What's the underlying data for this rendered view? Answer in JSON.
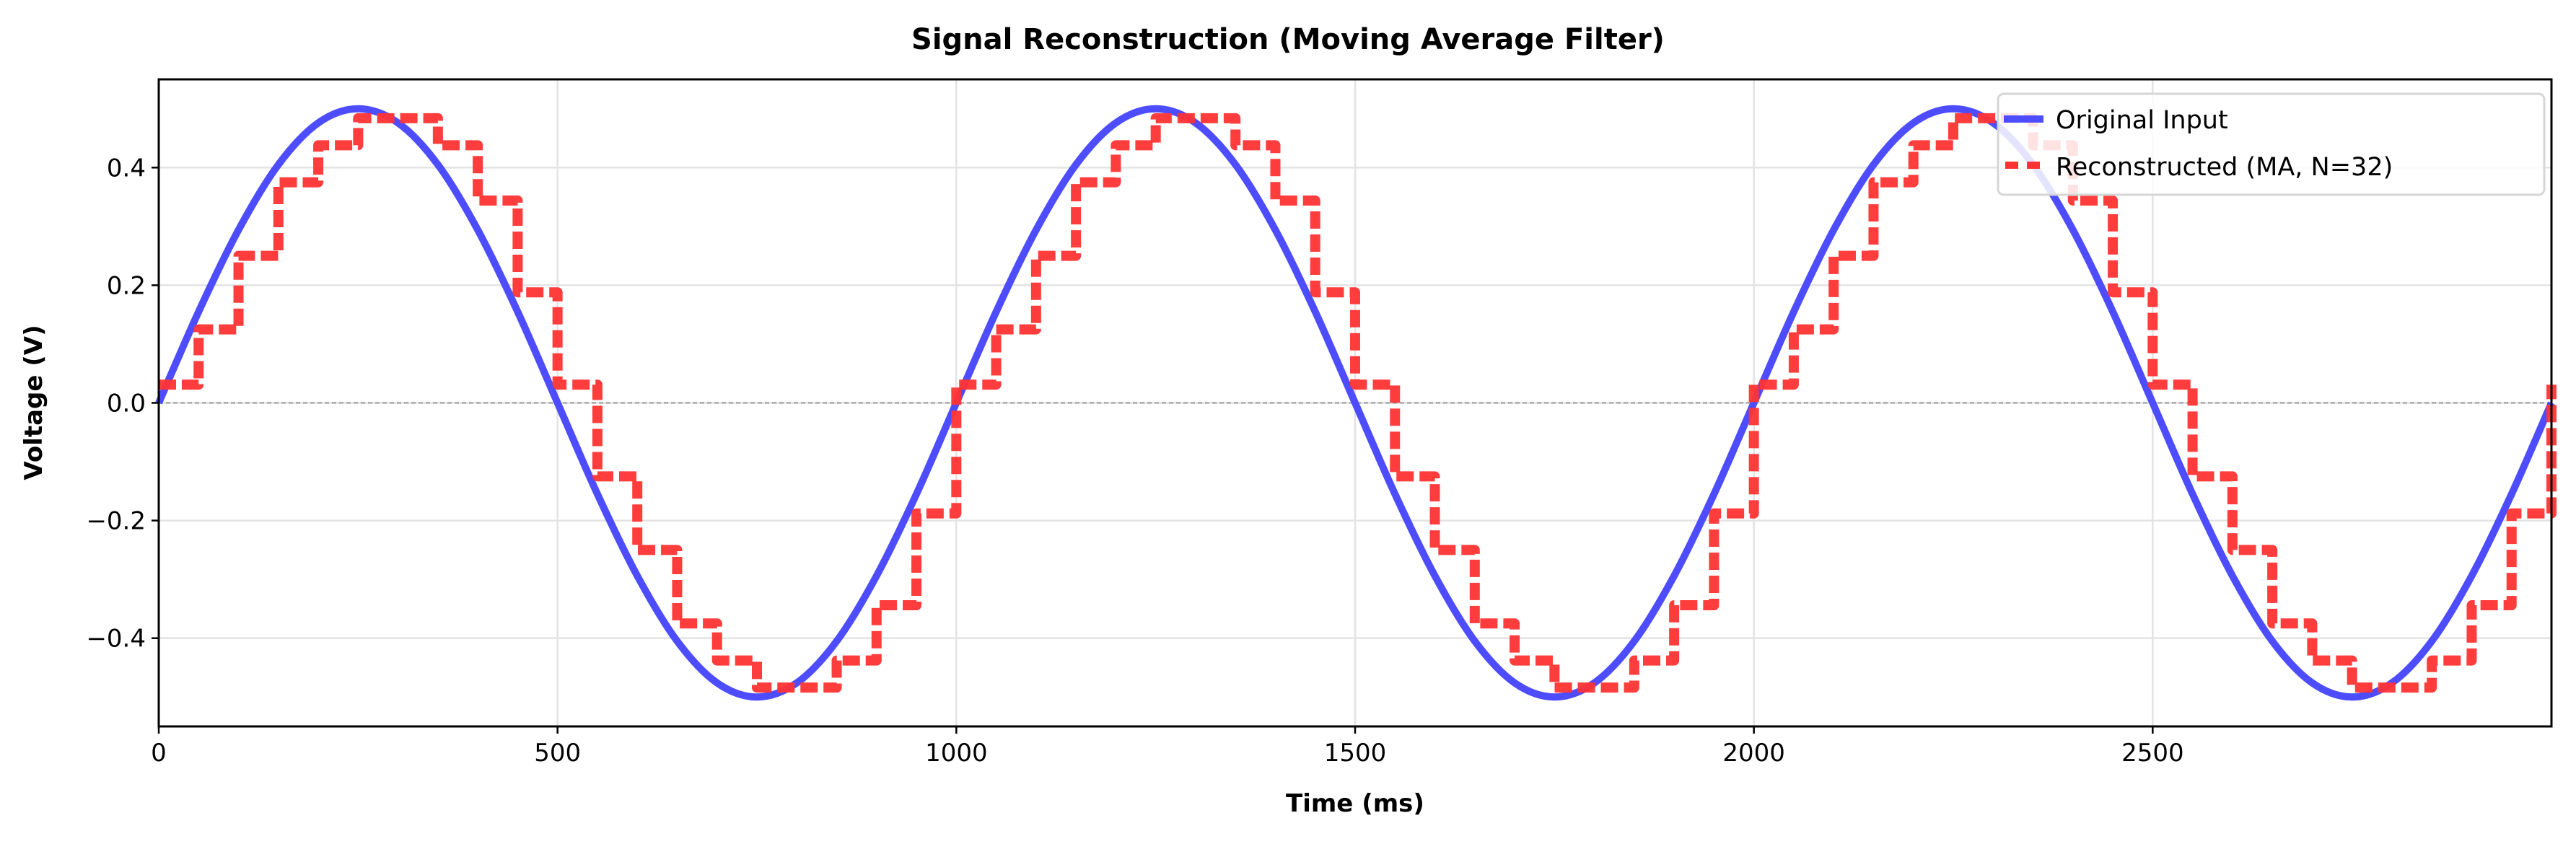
{
  "chart_data": {
    "type": "line",
    "title": "Signal Reconstruction (Moving Average Filter)",
    "xlabel": "Time (ms)",
    "ylabel": "Voltage (V)",
    "xlim": [
      0,
      3000
    ],
    "ylim": [
      -0.55,
      0.55
    ],
    "xticks": [
      "0",
      "500",
      "1000",
      "1500",
      "2000",
      "2500"
    ],
    "xtick_values": [
      0,
      500,
      1000,
      1500,
      2000,
      2500
    ],
    "yticks": [
      "−0.4",
      "−0.2",
      "0.0",
      "0.2",
      "0.4"
    ],
    "ytick_values": [
      -0.4,
      -0.2,
      0.0,
      0.2,
      0.4
    ],
    "grid": true,
    "zero_line": {
      "y": 0,
      "style": "dashed",
      "color": "#999999"
    },
    "legend_position": "top-right",
    "x_step_ms": 50,
    "series": [
      {
        "name": "Original Input",
        "color": "#4d4dff",
        "style": "solid",
        "x_start": 0,
        "values": [
          0,
          0.155,
          0.294,
          0.405,
          0.476,
          0.5,
          0.476,
          0.405,
          0.294,
          0.155,
          0,
          -0.155,
          -0.294,
          -0.405,
          -0.476,
          -0.5,
          -0.476,
          -0.405,
          -0.294,
          -0.155,
          0,
          0.155,
          0.294,
          0.405,
          0.476,
          0.5,
          0.476,
          0.405,
          0.294,
          0.155,
          0,
          -0.155,
          -0.294,
          -0.405,
          -0.476,
          -0.5,
          -0.476,
          -0.405,
          -0.294,
          -0.155,
          0,
          0.155,
          0.294,
          0.405,
          0.476,
          0.5,
          0.476,
          0.405,
          0.294,
          0.155,
          0,
          -0.155,
          -0.294,
          -0.405,
          -0.476,
          -0.5,
          -0.476,
          -0.405,
          -0.294,
          -0.155,
          0
        ]
      },
      {
        "name": "Reconstructed (MA, N=32)",
        "color": "#ff3333",
        "style": "dashed",
        "x_start": 0,
        "values": [
          0.031,
          0.125,
          0.25,
          0.375,
          0.438,
          0.484,
          0.484,
          0.438,
          0.344,
          0.188,
          0.031,
          -0.125,
          -0.25,
          -0.375,
          -0.438,
          -0.484,
          -0.484,
          -0.438,
          -0.344,
          -0.188,
          0.031,
          0.125,
          0.25,
          0.375,
          0.438,
          0.484,
          0.484,
          0.438,
          0.344,
          0.188,
          0.031,
          -0.125,
          -0.25,
          -0.375,
          -0.438,
          -0.484,
          -0.484,
          -0.438,
          -0.344,
          -0.188,
          0.031,
          0.125,
          0.25,
          0.375,
          0.438,
          0.484,
          0.484,
          0.438,
          0.344,
          0.188,
          0.031,
          -0.125,
          -0.25,
          -0.375,
          -0.438,
          -0.484,
          -0.484,
          -0.438,
          -0.344,
          -0.188,
          0.031
        ]
      }
    ]
  }
}
